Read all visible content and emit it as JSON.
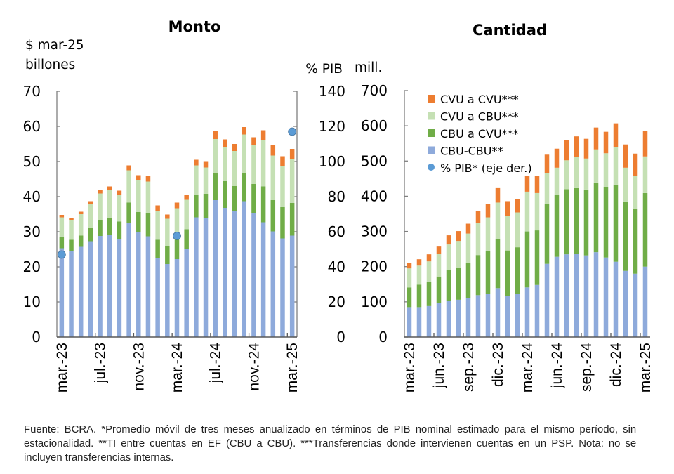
{
  "colors": {
    "cbu_cbu": "#8eaadb",
    "cbu_cvu": "#70ad47",
    "cvu_cbu": "#c5e0b4",
    "cvu_cvu": "#ed7d31",
    "pib_dot": "#5b9bd5",
    "axis": "#808080"
  },
  "chart_data": [
    {
      "type": "bar",
      "stacked": true,
      "title": "Monto",
      "ylabel": "$ mar-25 billones",
      "y2label": "% PIB",
      "ylim": [
        0,
        70
      ],
      "y2lim": [
        0,
        140
      ],
      "yticks": [
        "0",
        "10",
        "20",
        "30",
        "40",
        "50",
        "60",
        "70"
      ],
      "y2ticks": [
        "0",
        "20",
        "40",
        "60",
        "80",
        "100",
        "120",
        "140"
      ],
      "grid": false,
      "xtick_labels": [
        "mar.-23",
        "jul.-23",
        "nov.-23",
        "mar.-24",
        "jul.-24",
        "nov.-24",
        "mar.-25"
      ],
      "xtick_indices": [
        0,
        4,
        8,
        12,
        16,
        20,
        24
      ],
      "categories": [
        "mar.-23",
        "abr.-23",
        "may.-23",
        "jun.-23",
        "jul.-23",
        "ago.-23",
        "sep.-23",
        "oct.-23",
        "nov.-23",
        "dic.-23",
        "ene.-24",
        "feb.-24",
        "mar.-24",
        "abr.-24",
        "may.-24",
        "jun.-24",
        "jul.-24",
        "ago.-24",
        "sep.-24",
        "oct.-24",
        "nov.-24",
        "dic.-24",
        "ene.-25",
        "feb.-25",
        "mar.-25"
      ],
      "series": [
        {
          "name": "CBU-CBU**",
          "key": "cbu_cbu",
          "values": [
            25.3,
            24.4,
            25.7,
            27.3,
            28.8,
            29.2,
            27.9,
            32.6,
            29.9,
            28.7,
            22.5,
            20.8,
            22.2,
            25.0,
            34.1,
            33.8,
            39.0,
            36.8,
            35.8,
            38.7,
            35.2,
            32.7,
            30.1,
            28.1,
            28.9
          ]
        },
        {
          "name": "CBU a CVU***",
          "key": "cbu_cvu",
          "values": [
            3.2,
            3.3,
            3.2,
            3.9,
            4.4,
            4.6,
            5.0,
            5.7,
            5.7,
            6.5,
            5.2,
            5.2,
            7.1,
            5.7,
            6.5,
            7.0,
            7.6,
            7.6,
            7.2,
            8.0,
            8.4,
            10.2,
            8.9,
            8.9,
            9.3
          ]
        },
        {
          "name": "CVU a CBU***",
          "key": "cvu_cbu",
          "values": [
            5.6,
            5.6,
            6.1,
            6.7,
            7.7,
            8.1,
            7.7,
            9.2,
            9.1,
            9.1,
            8.3,
            7.7,
            7.4,
            8.4,
            8.3,
            7.5,
            9.8,
            9.8,
            10.0,
            11.0,
            11.1,
            13.2,
            12.7,
            11.7,
            12.5
          ]
        },
        {
          "name": "CVU a CVU***",
          "key": "cvu_cvu",
          "values": [
            0.7,
            0.6,
            0.7,
            0.8,
            1.0,
            1.0,
            1.1,
            1.4,
            1.4,
            1.6,
            1.5,
            1.2,
            1.6,
            1.5,
            1.6,
            1.8,
            2.2,
            2.1,
            2.0,
            2.1,
            2.2,
            2.8,
            3.1,
            2.8,
            2.9
          ]
        }
      ],
      "pib_points": [
        {
          "index": 0,
          "value": 47
        },
        {
          "index": 12,
          "value": 57.6
        },
        {
          "index": 24,
          "value": 117
        }
      ]
    },
    {
      "type": "bar",
      "stacked": true,
      "title": "Cantidad",
      "ylabel": "mill.",
      "ylim": [
        0,
        700
      ],
      "yticks": [
        "0",
        "100",
        "200",
        "300",
        "400",
        "500",
        "600",
        "700"
      ],
      "grid": false,
      "xtick_labels": [
        "mar.-23",
        "jun.-23",
        "sep.-23",
        "dic.-23",
        "mar.-24",
        "jun.-24",
        "sep.-24",
        "dic.-24",
        "mar.-25"
      ],
      "xtick_indices": [
        0,
        3,
        6,
        9,
        12,
        15,
        18,
        21,
        24
      ],
      "categories": [
        "mar.-23",
        "abr.-23",
        "may.-23",
        "jun.-23",
        "jul.-23",
        "ago.-23",
        "sep.-23",
        "oct.-23",
        "nov.-23",
        "dic.-23",
        "ene.-24",
        "feb.-24",
        "mar.-24",
        "abr.-24",
        "may.-24",
        "jun.-24",
        "jul.-24",
        "ago.-24",
        "sep.-24",
        "oct.-24",
        "nov.-24",
        "dic.-24",
        "ene.-25",
        "feb.-25",
        "mar.-25"
      ],
      "series": [
        {
          "name": "CBU-CBU**",
          "key": "cbu_cbu",
          "values": [
            85,
            85,
            88,
            96,
            103,
            106,
            110,
            119,
            123,
            139,
            117,
            122,
            141,
            148,
            208,
            228,
            235,
            236,
            232,
            241,
            226,
            214,
            188,
            180,
            200
          ]
        },
        {
          "name": "CBU a CVU***",
          "key": "cbu_cvu",
          "values": [
            56,
            64,
            68,
            76,
            87,
            90,
            101,
            114,
            121,
            140,
            129,
            133,
            159,
            155,
            169,
            176,
            185,
            187,
            187,
            198,
            199,
            219,
            197,
            185,
            209
          ]
        },
        {
          "name": "CVU a CBU***",
          "key": "cvu_cbu",
          "values": [
            54,
            54,
            59,
            64,
            73,
            77,
            83,
            92,
            96,
            103,
            98,
            99,
            113,
            106,
            89,
            77,
            82,
            88,
            88,
            94,
            97,
            107,
            96,
            93,
            104
          ]
        },
        {
          "name": "CVU a CVU***",
          "key": "cvu_cvu",
          "values": [
            15,
            18,
            20,
            21,
            26,
            28,
            28,
            34,
            37,
            41,
            42,
            37,
            45,
            48,
            52,
            54,
            57,
            59,
            56,
            62,
            61,
            67,
            66,
            63,
            73
          ]
        }
      ],
      "legend": {
        "position": "top-left",
        "entries": [
          {
            "label": "CVU a CVU***",
            "key": "cvu_cvu",
            "marker": "square"
          },
          {
            "label": "CVU a CBU***",
            "key": "cvu_cbu",
            "marker": "square"
          },
          {
            "label": "CBU a CVU***",
            "key": "cbu_cvu",
            "marker": "square"
          },
          {
            "label": "CBU-CBU**",
            "key": "cbu_cbu",
            "marker": "square"
          },
          {
            "label": "% PIB* (eje der.)",
            "key": "pib_dot",
            "marker": "circle"
          }
        ]
      }
    }
  ],
  "footnote": "Fuente: BCRA. *Promedio móvil de tres meses anualizado en términos de PIB nominal estimado para el mismo período, sin estacionalidad. **TI entre cuentas en EF (CBU a CBU). ***Transferencias donde intervienen cuentas en un PSP. Nota: no se incluyen transferencias internas."
}
